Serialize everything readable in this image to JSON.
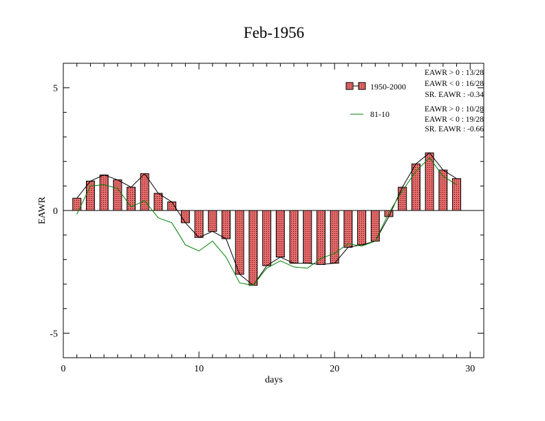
{
  "chart_data": {
    "type": "bar",
    "title": "Feb-1956",
    "xlabel": "days",
    "ylabel": "EAWR",
    "xlim": [
      0,
      31
    ],
    "ylim": [
      -6,
      6
    ],
    "xticks": [
      0,
      10,
      20,
      30
    ],
    "yticks": [
      -5,
      0,
      5
    ],
    "x": [
      1,
      2,
      3,
      4,
      5,
      6,
      7,
      8,
      9,
      10,
      11,
      12,
      13,
      14,
      15,
      16,
      17,
      18,
      19,
      20,
      21,
      22,
      23,
      24,
      25,
      26,
      27,
      28,
      29
    ],
    "series": [
      {
        "name": "1950-2000",
        "kind": "bar+line",
        "color": "#e06666",
        "values": [
          0.5,
          1.2,
          1.45,
          1.25,
          0.95,
          1.5,
          0.7,
          0.35,
          -0.5,
          -1.1,
          -0.85,
          -1.15,
          -2.6,
          -3.05,
          -2.25,
          -1.9,
          -2.15,
          -2.15,
          -2.2,
          -2.15,
          -1.5,
          -1.4,
          -1.25,
          -0.25,
          0.95,
          1.9,
          2.35,
          1.65,
          1.3
        ]
      },
      {
        "name": "81-10",
        "kind": "line",
        "color": "#008000",
        "values": [
          -0.15,
          1.0,
          1.05,
          0.9,
          0.15,
          0.4,
          -0.3,
          -0.5,
          -1.4,
          -1.65,
          -1.25,
          -1.9,
          -2.95,
          -3.05,
          -2.35,
          -2.05,
          -2.3,
          -2.35,
          -1.95,
          -1.75,
          -1.35,
          -1.45,
          -1.25,
          -0.1,
          0.8,
          1.6,
          2.15,
          1.4,
          1.05
        ]
      }
    ],
    "legend": {
      "position": "top-right",
      "entries": [
        {
          "label": "1950-2000",
          "stats": [
            "EAWR > 0 : 13/28",
            "EAWR < 0 : 16/28",
            "SR. EAWR : -0.34"
          ]
        },
        {
          "label": "81-10",
          "stats": [
            "EAWR > 0 : 10/28",
            "EAWR < 0 : 19/28",
            "SR. EAWR : -0.66"
          ]
        }
      ]
    }
  }
}
